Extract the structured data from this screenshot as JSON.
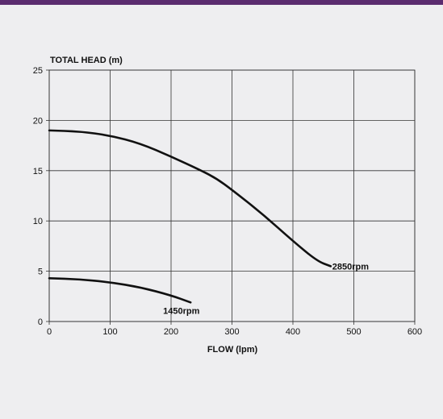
{
  "colors": {
    "top_bar": "#5b2c6f",
    "background": "#eeeef0",
    "grid": "#333333",
    "curve": "#111111"
  },
  "chart_data": {
    "type": "line",
    "title": "",
    "ylabel": "TOTAL HEAD (m)",
    "xlabel": "FLOW (lpm)",
    "xlim": [
      0,
      600
    ],
    "ylim": [
      0,
      25
    ],
    "x_ticks": [
      "0",
      "100",
      "200",
      "300",
      "400",
      "500",
      "600"
    ],
    "y_ticks": [
      "0",
      "5",
      "10",
      "15",
      "20",
      "25"
    ],
    "grid": true,
    "series": [
      {
        "name": "2850rpm",
        "points": [
          [
            0,
            19.0
          ],
          [
            50,
            18.9
          ],
          [
            100,
            18.5
          ],
          [
            150,
            17.7
          ],
          [
            200,
            16.4
          ],
          [
            250,
            15.0
          ],
          [
            275,
            14.2
          ],
          [
            300,
            13.1
          ],
          [
            350,
            10.7
          ],
          [
            400,
            8.0
          ],
          [
            440,
            6.0
          ],
          [
            462,
            5.5
          ]
        ]
      },
      {
        "name": "1450rpm",
        "points": [
          [
            0,
            4.3
          ],
          [
            50,
            4.2
          ],
          [
            100,
            3.9
          ],
          [
            150,
            3.4
          ],
          [
            200,
            2.6
          ],
          [
            232,
            1.9
          ]
        ]
      }
    ]
  }
}
